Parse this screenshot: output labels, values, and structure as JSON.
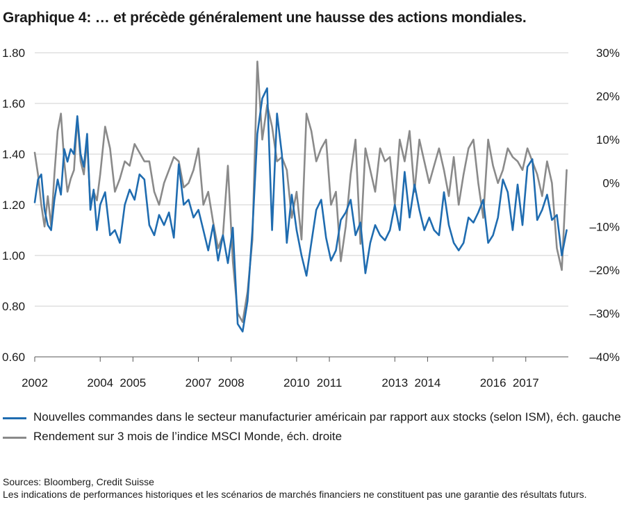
{
  "title": "Graphique 4: … et précède généralement une hausse des actions mondiales.",
  "colors": {
    "ism": "#1f6cb0",
    "msci": "#8a8a8a",
    "grid": "#cfcfcf",
    "axis": "#555555"
  },
  "chart_data": {
    "type": "line",
    "title": "Graphique 4: … et précède généralement une hausse des actions mondiales.",
    "x_range": [
      2002.0,
      2018.3
    ],
    "x_tick_values": [
      2002.0,
      2004.0,
      2005.0,
      2007.0,
      2008.0,
      2010.0,
      2011.0,
      2013.0,
      2014.0,
      2016.0,
      2017.0
    ],
    "x_tick_labels": [
      "2002",
      "2004",
      "2005",
      "2007",
      "2008",
      "2010",
      "2011",
      "2013",
      "2014",
      "2016",
      "2017"
    ],
    "y_left": {
      "range": [
        0.6,
        1.8
      ],
      "ticks": [
        0.6,
        0.8,
        1.0,
        1.2,
        1.4,
        1.6,
        1.8
      ],
      "tick_labels": [
        "0.60",
        "0.80",
        "1.00",
        "1.20",
        "1.40",
        "1.60",
        "1.80"
      ]
    },
    "y_right": {
      "range": [
        -40,
        30
      ],
      "ticks": [
        -40,
        -30,
        -20,
        -10,
        0,
        10,
        20,
        30
      ],
      "tick_labels": [
        "–40%",
        "–30%",
        "–20%",
        "–10%",
        "0%",
        "10%",
        "20%",
        "30%"
      ]
    },
    "grid": true,
    "legend_position": "bottom",
    "series": [
      {
        "name": "Nouvelles commandes dans le secteur manufacturier américain par rapport aux stocks (selon ISM), éch. gauche",
        "axis": "left",
        "x": [
          2002.0,
          2002.1,
          2002.2,
          2002.3,
          2002.4,
          2002.5,
          2002.6,
          2002.7,
          2002.8,
          2002.9,
          2003.0,
          2003.1,
          2003.2,
          2003.3,
          2003.4,
          2003.5,
          2003.6,
          2003.7,
          2003.8,
          2003.9,
          2004.0,
          2004.15,
          2004.3,
          2004.45,
          2004.6,
          2004.75,
          2004.9,
          2005.05,
          2005.2,
          2005.35,
          2005.5,
          2005.65,
          2005.8,
          2005.95,
          2006.1,
          2006.25,
          2006.4,
          2006.55,
          2006.7,
          2006.85,
          2007.0,
          2007.15,
          2007.3,
          2007.45,
          2007.6,
          2007.75,
          2007.9,
          2008.05,
          2008.2,
          2008.35,
          2008.5,
          2008.65,
          2008.8,
          2008.95,
          2009.1,
          2009.25,
          2009.4,
          2009.55,
          2009.7,
          2009.85,
          2010.0,
          2010.15,
          2010.3,
          2010.45,
          2010.6,
          2010.75,
          2010.9,
          2011.05,
          2011.2,
          2011.35,
          2011.5,
          2011.65,
          2011.8,
          2011.95,
          2012.1,
          2012.25,
          2012.4,
          2012.55,
          2012.7,
          2012.85,
          2013.0,
          2013.15,
          2013.3,
          2013.45,
          2013.6,
          2013.75,
          2013.9,
          2014.05,
          2014.2,
          2014.35,
          2014.5,
          2014.65,
          2014.8,
          2014.95,
          2015.1,
          2015.25,
          2015.4,
          2015.55,
          2015.7,
          2015.85,
          2016.0,
          2016.15,
          2016.3,
          2016.45,
          2016.6,
          2016.75,
          2016.9,
          2017.05,
          2017.2,
          2017.35,
          2017.5,
          2017.65,
          2017.8,
          2017.95,
          2018.1,
          2018.25
        ],
        "y": [
          1.21,
          1.3,
          1.32,
          1.18,
          1.12,
          1.1,
          1.22,
          1.3,
          1.24,
          1.42,
          1.37,
          1.42,
          1.4,
          1.55,
          1.4,
          1.35,
          1.48,
          1.18,
          1.26,
          1.1,
          1.2,
          1.25,
          1.08,
          1.1,
          1.05,
          1.2,
          1.26,
          1.22,
          1.32,
          1.3,
          1.12,
          1.08,
          1.16,
          1.12,
          1.17,
          1.07,
          1.36,
          1.2,
          1.22,
          1.15,
          1.18,
          1.1,
          1.02,
          1.12,
          0.98,
          1.08,
          0.97,
          1.11,
          0.73,
          0.7,
          0.82,
          1.1,
          1.48,
          1.62,
          1.66,
          1.1,
          1.56,
          1.4,
          1.05,
          1.24,
          1.1,
          1.0,
          0.92,
          1.05,
          1.18,
          1.22,
          1.07,
          0.98,
          1.02,
          1.14,
          1.17,
          1.22,
          1.08,
          1.13,
          0.93,
          1.05,
          1.12,
          1.08,
          1.06,
          1.1,
          1.2,
          1.1,
          1.33,
          1.15,
          1.28,
          1.18,
          1.1,
          1.15,
          1.1,
          1.08,
          1.25,
          1.12,
          1.05,
          1.02,
          1.05,
          1.15,
          1.13,
          1.17,
          1.22,
          1.05,
          1.08,
          1.15,
          1.3,
          1.25,
          1.1,
          1.28,
          1.12,
          1.35,
          1.38,
          1.14,
          1.18,
          1.24,
          1.14,
          1.16,
          1.0,
          1.1
        ]
      },
      {
        "name": "Rendement sur 3 mois de l’indice MSCI Monde, éch. droite",
        "axis": "right",
        "x": [
          2002.0,
          2002.1,
          2002.2,
          2002.3,
          2002.4,
          2002.5,
          2002.6,
          2002.7,
          2002.8,
          2002.9,
          2003.0,
          2003.1,
          2003.2,
          2003.3,
          2003.4,
          2003.5,
          2003.6,
          2003.7,
          2003.8,
          2003.9,
          2004.0,
          2004.15,
          2004.3,
          2004.45,
          2004.6,
          2004.75,
          2004.9,
          2005.05,
          2005.2,
          2005.35,
          2005.5,
          2005.65,
          2005.8,
          2005.95,
          2006.1,
          2006.25,
          2006.4,
          2006.55,
          2006.7,
          2006.85,
          2007.0,
          2007.15,
          2007.3,
          2007.45,
          2007.6,
          2007.75,
          2007.9,
          2008.05,
          2008.2,
          2008.35,
          2008.5,
          2008.65,
          2008.8,
          2008.95,
          2009.1,
          2009.25,
          2009.4,
          2009.55,
          2009.7,
          2009.85,
          2010.0,
          2010.15,
          2010.3,
          2010.45,
          2010.6,
          2010.75,
          2010.9,
          2011.05,
          2011.2,
          2011.35,
          2011.5,
          2011.65,
          2011.8,
          2011.95,
          2012.1,
          2012.25,
          2012.4,
          2012.55,
          2012.7,
          2012.85,
          2013.0,
          2013.15,
          2013.3,
          2013.45,
          2013.6,
          2013.75,
          2013.9,
          2014.05,
          2014.2,
          2014.35,
          2014.5,
          2014.65,
          2014.8,
          2014.95,
          2015.1,
          2015.25,
          2015.4,
          2015.55,
          2015.7,
          2015.85,
          2016.0,
          2016.15,
          2016.3,
          2016.45,
          2016.6,
          2016.75,
          2016.9,
          2017.05,
          2017.2,
          2017.35,
          2017.5,
          2017.65,
          2017.8,
          2017.95,
          2018.1,
          2018.25
        ],
        "y": [
          7,
          2,
          -5,
          -10,
          -3,
          -10,
          2,
          12,
          16,
          5,
          -2,
          1,
          3,
          15,
          5,
          2,
          10,
          -5,
          -2,
          -4,
          2,
          13,
          8,
          -2,
          1,
          5,
          4,
          9,
          7,
          5,
          5,
          -2,
          -5,
          0,
          3,
          6,
          5,
          -1,
          0,
          3,
          8,
          -5,
          -2,
          -9,
          -15,
          -12,
          4,
          -18,
          -30,
          -32,
          -25,
          -13,
          28,
          10,
          18,
          13,
          5,
          6,
          3,
          -8,
          -2,
          -13,
          16,
          12,
          5,
          8,
          10,
          -5,
          -2,
          -18,
          -10,
          2,
          10,
          -14,
          8,
          3,
          -2,
          8,
          5,
          6,
          -5,
          10,
          5,
          12,
          -2,
          10,
          5,
          0,
          4,
          8,
          3,
          -3,
          6,
          -5,
          2,
          8,
          10,
          0,
          -8,
          10,
          4,
          0,
          3,
          8,
          6,
          5,
          3,
          8,
          5,
          2,
          -3,
          5,
          0,
          -15,
          -20,
          3
        ]
      }
    ]
  },
  "legend": [
    {
      "label": "Nouvelles commandes dans le secteur manufacturier américain par rapport aux stocks (selon ISM), éch. gauche",
      "color_key": "ism"
    },
    {
      "label": "Rendement sur 3 mois de l’indice MSCI Monde, éch. droite",
      "color_key": "msci"
    }
  ],
  "sources": "Sources: Bloomberg, Credit Suisse",
  "disclaimer": "Les indications de performances historiques et les scénarios de marchés financiers ne constituent pas une garantie des résultats futurs."
}
